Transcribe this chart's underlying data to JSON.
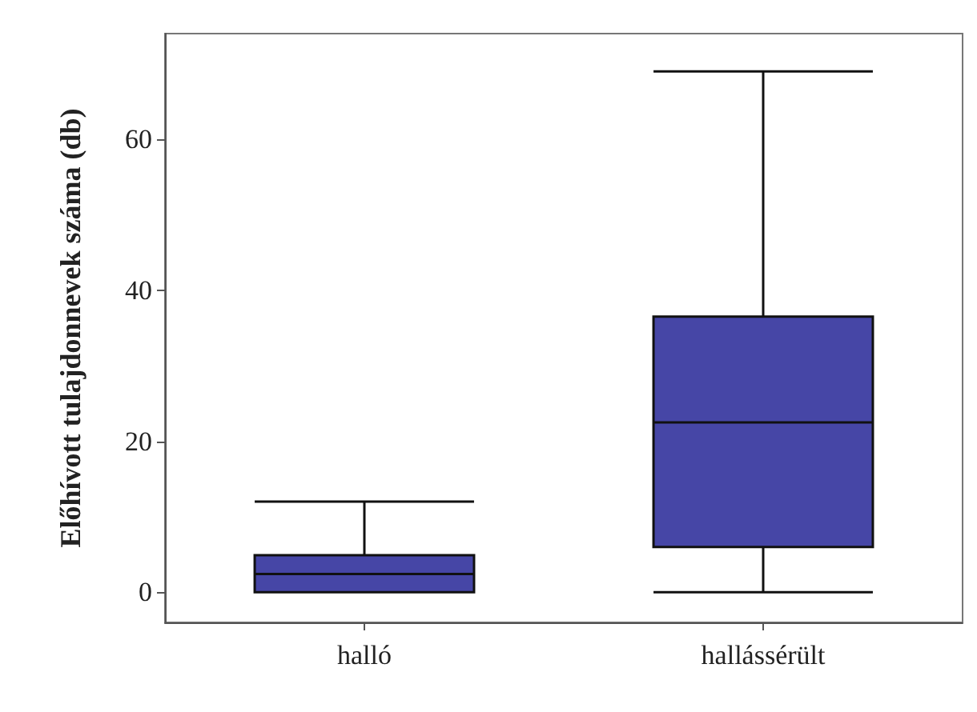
{
  "chart_data": {
    "type": "box",
    "ylabel": "Előhívott tulajdonnevek száma (db)",
    "categories": [
      "halló",
      "hallássérült"
    ],
    "series": [
      {
        "color": "#4646a6",
        "boxes": [
          {
            "low": 0,
            "q1": 0,
            "median": 2.4,
            "q3": 4.9,
            "high": 12
          },
          {
            "low": 0,
            "q1": 6,
            "median": 22.5,
            "q3": 36.5,
            "high": 69
          }
        ]
      }
    ],
    "ylim": [
      -4,
      74
    ],
    "yticks": [
      0,
      20,
      40,
      60
    ],
    "grid": false
  }
}
